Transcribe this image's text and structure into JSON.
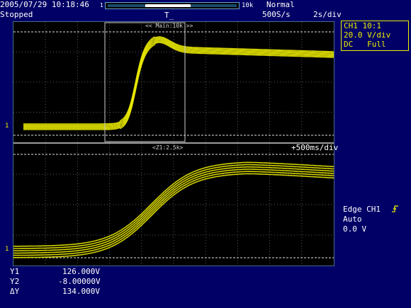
{
  "header": {
    "datetime": "2005/07/29 10:18:46",
    "record_left_label": "1",
    "record_right_label": "10k",
    "status": "Stopped",
    "trigger_pos_marker": "T̲",
    "acq_mode": "Normal",
    "sample_rate": "500S/s",
    "timebase": "2s/div"
  },
  "channel_box": {
    "line1": "CH1 10:1",
    "line2": "20.0 V/div",
    "line3": "DC   Full",
    "color": "#f0f000"
  },
  "main_window": {
    "zoom_box_label": "<< Main:10k >>",
    "ground_marker": "1"
  },
  "zoom_window": {
    "zoom_label": "<Z1:2.5k>",
    "zoom_timebase": "+500ms/div",
    "ground_marker": "1"
  },
  "trigger": {
    "line1": "Edge CH1",
    "line2": "Auto",
    "line3": "0.0 V",
    "slope_icon": "rising-edge-icon"
  },
  "measurements": {
    "rows": [
      {
        "label": "Y1",
        "value": "126.000V"
      },
      {
        "label": "Y2",
        "value": "-8.00000V"
      },
      {
        "label": "ΔY",
        "value": "134.000V"
      }
    ]
  },
  "colors": {
    "background": "#000066",
    "trace": "#e8e800",
    "grid": "#5a5a5a",
    "cursor": "#ffffff"
  }
}
